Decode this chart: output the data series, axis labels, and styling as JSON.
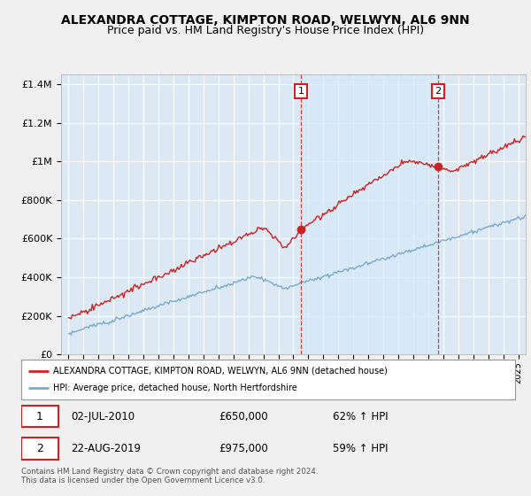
{
  "title": "ALEXANDRA COTTAGE, KIMPTON ROAD, WELWYN, AL6 9NN",
  "subtitle": "Price paid vs. HM Land Registry's House Price Index (HPI)",
  "title_fontsize": 10,
  "subtitle_fontsize": 9,
  "ylabel_ticks": [
    "£0",
    "£200K",
    "£400K",
    "£600K",
    "£800K",
    "£1M",
    "£1.2M",
    "£1.4M"
  ],
  "ytick_vals": [
    0,
    200000,
    400000,
    600000,
    800000,
    1000000,
    1200000,
    1400000
  ],
  "ylim": [
    0,
    1450000
  ],
  "xlim_start": 1994.5,
  "xlim_end": 2025.5,
  "bg_color": "#dce9f5",
  "plot_bg_color": "#dce9f5",
  "fig_bg_color": "#f0f0f0",
  "grid_color": "#ffffff",
  "red_color": "#cc2222",
  "blue_color": "#7aaad0",
  "shade_color": "#d6e8f7",
  "legend_label_red": "ALEXANDRA COTTAGE, KIMPTON ROAD, WELWYN, AL6 9NN (detached house)",
  "legend_label_blue": "HPI: Average price, detached house, North Hertfordshire",
  "transaction1_x": 2010.5,
  "transaction1_y": 650000,
  "transaction2_x": 2019.65,
  "transaction2_y": 975000,
  "footer": "Contains HM Land Registry data © Crown copyright and database right 2024.\nThis data is licensed under the Open Government Licence v3.0."
}
